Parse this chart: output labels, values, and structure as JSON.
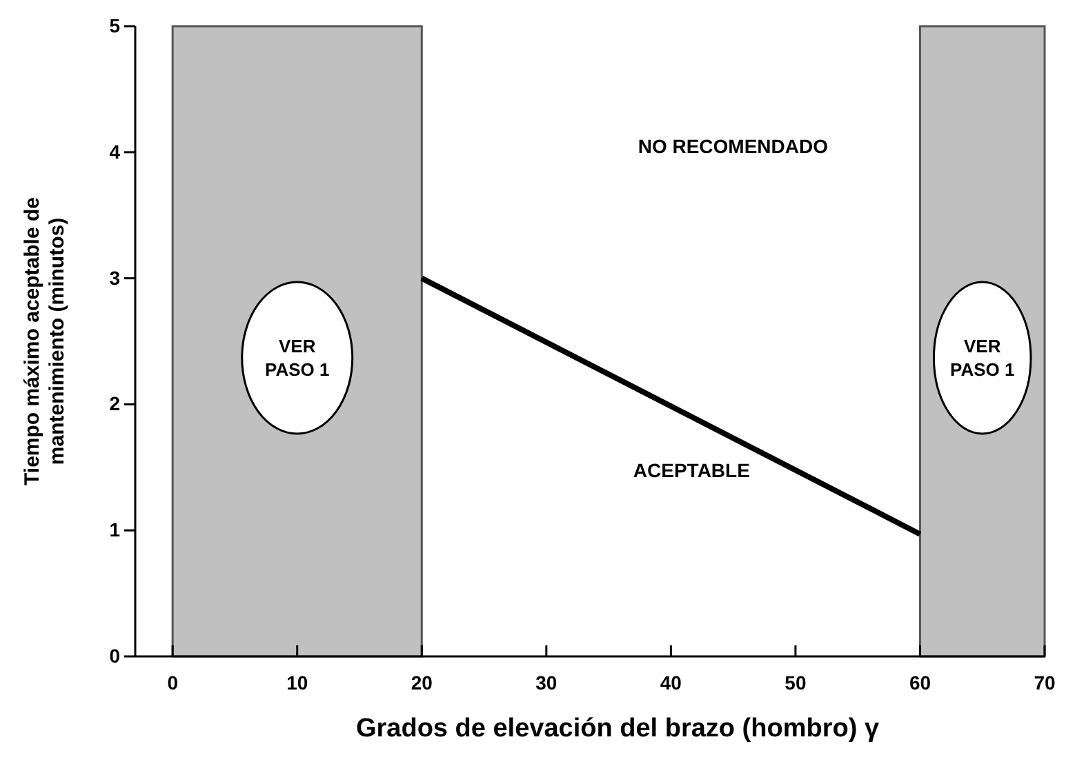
{
  "chart_data": {
    "type": "line",
    "xlabel": "Grados de elevación del brazo (hombro)  γ",
    "ylabel": "Tiempo máximo aceptable de mantenimiento (minutos)",
    "xlim": [
      -3,
      70
    ],
    "ylim": [
      0,
      5
    ],
    "xticks": [
      0,
      10,
      20,
      30,
      40,
      50,
      60,
      70
    ],
    "yticks": [
      0,
      1,
      2,
      3,
      4,
      5
    ],
    "grid": false,
    "marker": "none",
    "line_style": "solid",
    "series": [
      {
        "color": "#000000",
        "x": [
          20,
          60
        ],
        "values": [
          3,
          0.97
        ]
      }
    ],
    "bands": [
      {
        "axis": "x",
        "from": 0,
        "to": 20,
        "label": "VER PASO 1",
        "color": "#c0c0c0"
      },
      {
        "axis": "x",
        "from": 60,
        "to": 70,
        "label": "VER PASO 1",
        "color": "#c0c0c0"
      }
    ],
    "annotations": [
      "NO RECOMENDADO",
      "ACEPTABLE"
    ]
  }
}
